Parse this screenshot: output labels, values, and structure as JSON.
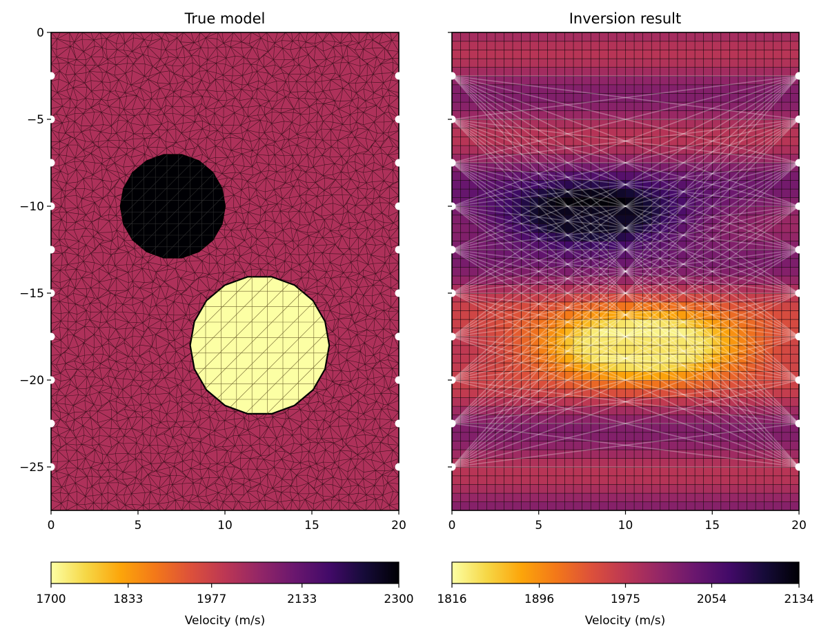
{
  "chart_data": [
    {
      "type": "heatmap",
      "title": "True model",
      "mesh": "triangular",
      "xlim": [
        0,
        20
      ],
      "ylim": [
        -27.5,
        0
      ],
      "xticks": [
        0,
        5,
        10,
        15,
        20
      ],
      "yticks": [
        0,
        -5,
        -10,
        -15,
        -20,
        -25
      ],
      "xtick_labels": [
        "0",
        "5",
        "10",
        "15",
        "20"
      ],
      "ytick_labels": [
        "0",
        "−5",
        "−10",
        "−15",
        "−20",
        "−25"
      ],
      "background_velocity": 2020,
      "anomalies": [
        {
          "kind": "high-velocity circle",
          "center": [
            7,
            -10
          ],
          "radius": 3,
          "velocity": 2300
        },
        {
          "kind": "low-velocity circle",
          "center": [
            12,
            -18
          ],
          "radius": 4,
          "velocity": 1700
        }
      ],
      "sensors": {
        "x": [
          0,
          20
        ],
        "depths": [
          -2.5,
          -5,
          -7.5,
          -10,
          -12.5,
          -15,
          -17.5,
          -20,
          -22.5,
          -25
        ]
      },
      "colorbar": {
        "colormap": "inferno (reversed)",
        "min": 1700,
        "max": 2300,
        "ticks": [
          1700,
          1833,
          1977,
          2133,
          2300
        ],
        "tick_labels": [
          "1700",
          "1833",
          "1977",
          "2133",
          "2300"
        ],
        "label": "Velocity (m/s)"
      }
    },
    {
      "type": "heatmap",
      "title": "Inversion result",
      "mesh": "regular grid",
      "xlim": [
        0,
        20
      ],
      "ylim": [
        -27.5,
        0
      ],
      "xticks": [
        0,
        5,
        10,
        15,
        20
      ],
      "yticks": [
        0,
        -5,
        -10,
        -15,
        -20,
        -25
      ],
      "xtick_labels": [
        "0",
        "5",
        "10",
        "15",
        "20"
      ],
      "background_velocity": 2000,
      "anomalies": [
        {
          "kind": "high-velocity zone",
          "center": [
            8,
            -10.5
          ],
          "radius_x": 5.5,
          "radius_y": 2.2,
          "velocity": 2134
        },
        {
          "kind": "low-velocity zone",
          "center": [
            11,
            -18
          ],
          "radius_x": 6.5,
          "radius_y": 2.4,
          "velocity": 1816
        }
      ],
      "rays": "straight ray paths between all sensor pairs on x=0 and x=20",
      "sensors": {
        "x": [
          0,
          20
        ],
        "depths": [
          -2.5,
          -5,
          -7.5,
          -10,
          -12.5,
          -15,
          -17.5,
          -20,
          -22.5,
          -25
        ]
      },
      "colorbar": {
        "colormap": "inferno (reversed)",
        "min": 1816,
        "max": 2134,
        "ticks": [
          1816,
          1896,
          1975,
          2054,
          2134
        ],
        "tick_labels": [
          "1816",
          "1896",
          "1975",
          "2054",
          "2134"
        ],
        "label": "Velocity (m/s)"
      }
    }
  ]
}
